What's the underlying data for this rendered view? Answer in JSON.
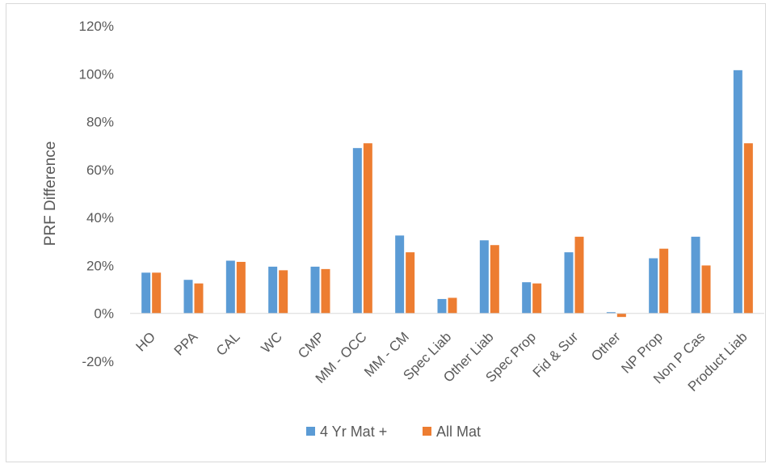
{
  "chart_data": {
    "type": "bar",
    "title": "",
    "xlabel": "",
    "ylabel": "PRF Difference",
    "ylim": [
      -20,
      120
    ],
    "y_ticks": [
      "-20%",
      "0%",
      "20%",
      "40%",
      "60%",
      "80%",
      "100%",
      "120%"
    ],
    "y_tick_values": [
      -20,
      0,
      20,
      40,
      60,
      80,
      100,
      120
    ],
    "grid": false,
    "legend_position": "bottom",
    "categories": [
      "HO",
      "PPA",
      "CAL",
      "WC",
      "CMP",
      "MM - OCC",
      "MM - CM",
      "Spec Liab",
      "Other Liab",
      "Spec Prop",
      "Fid & Sur",
      "Other",
      "NP Prop",
      "Non P Cas",
      "Product Liab"
    ],
    "series": [
      {
        "name": "4 Yr Mat +",
        "color": "#5b9bd5",
        "values": [
          17,
          14,
          22,
          19.5,
          19.5,
          69,
          32.5,
          6,
          30.5,
          13,
          25.5,
          0.5,
          23,
          32,
          101.5
        ]
      },
      {
        "name": "All Mat",
        "color": "#ed7d31",
        "values": [
          17,
          12.5,
          21.5,
          18,
          18.5,
          71,
          25.5,
          6.5,
          28.5,
          12.5,
          32,
          -1.5,
          27,
          20,
          71
        ]
      }
    ]
  }
}
